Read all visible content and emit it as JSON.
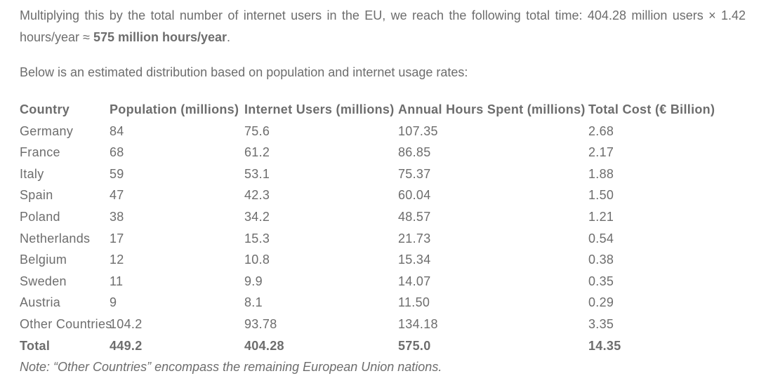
{
  "text_color": "#6d6d6d",
  "paragraph1": {
    "before_bold": "Multiplying this by the total number of internet users in the EU, we reach the following total time: 404.28 million users × 1.42 hours/year ≈ ",
    "bold": "575 million hours/year",
    "after_bold": "."
  },
  "paragraph2": "Below is an estimated distribution based on population and internet usage rates:",
  "table": {
    "headers": [
      "Country",
      "Population (millions)",
      "Internet Users (millions)",
      "Annual Hours Spent (millions)",
      "Total Cost (€ Billion)"
    ],
    "rows": [
      [
        "Germany",
        "84",
        "75.6",
        "107.35",
        "2.68"
      ],
      [
        "France",
        "68",
        "61.2",
        "86.85",
        "2.17"
      ],
      [
        "Italy",
        "59",
        "53.1",
        "75.37",
        "1.88"
      ],
      [
        "Spain",
        "47",
        "42.3",
        "60.04",
        "1.50"
      ],
      [
        "Poland",
        "38",
        "34.2",
        "48.57",
        "1.21"
      ],
      [
        "Netherlands",
        "17",
        "15.3",
        "21.73",
        "0.54"
      ],
      [
        "Belgium",
        "12",
        "10.8",
        "15.34",
        "0.38"
      ],
      [
        "Sweden",
        "11",
        "9.9",
        "14.07",
        "0.35"
      ],
      [
        "Austria",
        "9",
        "8.1",
        "11.50",
        "0.29"
      ],
      [
        "Other Countries",
        "104.2",
        "93.78",
        "134.18",
        "3.35"
      ]
    ],
    "total_row": [
      "Total",
      "449.2",
      "404.28",
      "575.0",
      "14.35"
    ]
  },
  "note": "Note: “Other Countries” encompass the remaining European Union nations."
}
